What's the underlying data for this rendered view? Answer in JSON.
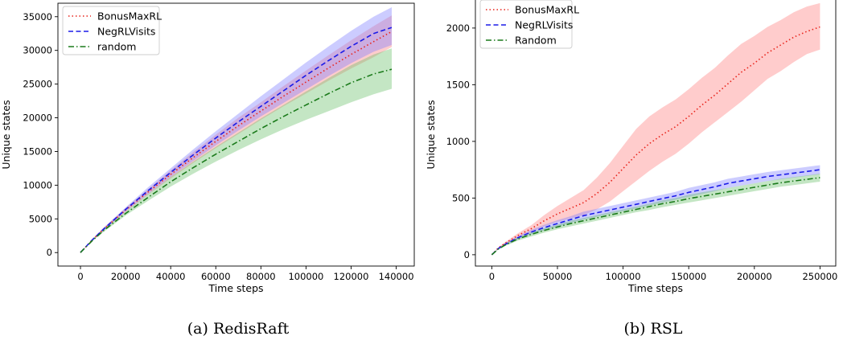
{
  "chart_data": [
    {
      "type": "line",
      "caption": "(a) RedisRaft",
      "xlabel": "Time steps",
      "ylabel": "Unique states",
      "xlim": [
        -10000,
        148000
      ],
      "ylim": [
        -2000,
        37000
      ],
      "xticks": [
        0,
        20000,
        40000,
        60000,
        80000,
        100000,
        120000,
        140000
      ],
      "yticks": [
        0,
        5000,
        10000,
        15000,
        20000,
        25000,
        30000,
        35000
      ],
      "legend_position": "top-left",
      "x": [
        0,
        5000,
        10000,
        20000,
        30000,
        40000,
        50000,
        60000,
        70000,
        80000,
        90000,
        100000,
        110000,
        120000,
        130000,
        138000
      ],
      "series": [
        {
          "name": "BonusMaxRL",
          "style": "dotted",
          "color": "#e8241b",
          "band_color": "#ff8080",
          "values": [
            0,
            1800,
            3400,
            6300,
            9000,
            11600,
            14100,
            16500,
            18800,
            21000,
            23200,
            25300,
            27400,
            29400,
            31300,
            32800
          ],
          "lower": [
            0,
            1700,
            3200,
            6000,
            8600,
            11000,
            13300,
            15500,
            17600,
            19700,
            21700,
            23600,
            25500,
            27300,
            29000,
            30500
          ],
          "upper": [
            0,
            1900,
            3600,
            6600,
            9400,
            12200,
            14900,
            17500,
            20000,
            22300,
            24700,
            27000,
            29300,
            31500,
            33600,
            35200
          ]
        },
        {
          "name": "NegRLVisits",
          "style": "dashed",
          "color": "#1b1be8",
          "band_color": "#8080ff",
          "values": [
            0,
            1800,
            3400,
            6400,
            9200,
            11900,
            14500,
            17000,
            19400,
            21700,
            24000,
            26300,
            28500,
            30600,
            32500,
            33400
          ],
          "lower": [
            0,
            1700,
            3200,
            6100,
            8700,
            11200,
            13600,
            15900,
            18100,
            20200,
            22200,
            24200,
            26200,
            28100,
            29800,
            30800
          ],
          "upper": [
            0,
            1900,
            3600,
            6700,
            9700,
            12500,
            15300,
            18000,
            20600,
            23200,
            25700,
            28200,
            30600,
            32900,
            35000,
            36400
          ]
        },
        {
          "name": "random",
          "style": "dashdot",
          "color": "#1a7a1a",
          "band_color": "#6cc06c",
          "values": [
            0,
            1700,
            3200,
            5800,
            8200,
            10500,
            12600,
            14600,
            16500,
            18400,
            20200,
            21900,
            23600,
            25200,
            26500,
            27200
          ],
          "lower": [
            0,
            1650,
            3000,
            5500,
            7700,
            9800,
            11700,
            13500,
            15200,
            16800,
            18300,
            19700,
            21000,
            22300,
            23500,
            24300
          ],
          "upper": [
            0,
            1750,
            3400,
            6100,
            8700,
            11200,
            13500,
            15700,
            17800,
            19900,
            21900,
            23900,
            25900,
            27800,
            29400,
            30300
          ]
        }
      ]
    },
    {
      "type": "line",
      "caption": "(b) RSL",
      "xlabel": "Time steps",
      "ylabel": "Unique states",
      "xlim": [
        -12500,
        262000
      ],
      "ylim": [
        -100,
        2290
      ],
      "xticks": [
        0,
        50000,
        100000,
        150000,
        200000,
        250000
      ],
      "yticks": [
        0,
        500,
        1000,
        1500,
        2000
      ],
      "legend_position": "top-left",
      "x": [
        0,
        5000,
        10000,
        20000,
        30000,
        40000,
        50000,
        60000,
        70000,
        80000,
        90000,
        100000,
        110000,
        120000,
        130000,
        140000,
        150000,
        160000,
        170000,
        180000,
        190000,
        200000,
        210000,
        220000,
        230000,
        240000,
        250000
      ],
      "series": [
        {
          "name": "BonusMaxRL",
          "style": "dotted",
          "color": "#e8241b",
          "band_color": "#ff8080",
          "values": [
            0,
            60,
            100,
            170,
            230,
            300,
            360,
            410,
            460,
            540,
            640,
            760,
            880,
            980,
            1060,
            1130,
            1220,
            1320,
            1410,
            1510,
            1610,
            1690,
            1780,
            1850,
            1920,
            1970,
            2010
          ],
          "lower": [
            0,
            55,
            90,
            150,
            200,
            250,
            290,
            320,
            350,
            400,
            470,
            560,
            650,
            740,
            820,
            890,
            980,
            1080,
            1170,
            1260,
            1350,
            1450,
            1550,
            1620,
            1700,
            1770,
            1810
          ],
          "upper": [
            0,
            65,
            110,
            190,
            260,
            350,
            430,
            500,
            570,
            680,
            810,
            960,
            1110,
            1220,
            1300,
            1370,
            1460,
            1560,
            1650,
            1760,
            1860,
            1930,
            2010,
            2070,
            2140,
            2190,
            2220
          ]
        },
        {
          "name": "NegRLVisits",
          "style": "dashed",
          "color": "#1b1be8",
          "band_color": "#8080ff",
          "values": [
            0,
            55,
            90,
            150,
            200,
            240,
            275,
            310,
            345,
            370,
            395,
            420,
            445,
            470,
            495,
            520,
            550,
            575,
            600,
            630,
            650,
            670,
            690,
            705,
            720,
            735,
            750
          ],
          "lower": [
            0,
            50,
            80,
            135,
            180,
            215,
            245,
            280,
            310,
            335,
            360,
            385,
            410,
            435,
            460,
            485,
            510,
            535,
            560,
            590,
            610,
            630,
            650,
            665,
            680,
            695,
            710
          ],
          "upper": [
            0,
            60,
            100,
            165,
            220,
            265,
            305,
            340,
            380,
            405,
            430,
            455,
            480,
            505,
            530,
            555,
            590,
            615,
            640,
            670,
            690,
            710,
            730,
            745,
            760,
            775,
            790
          ]
        },
        {
          "name": "Random",
          "style": "dashdot",
          "color": "#1a7a1a",
          "band_color": "#6cc06c",
          "values": [
            0,
            50,
            85,
            140,
            180,
            215,
            245,
            275,
            300,
            325,
            350,
            375,
            400,
            425,
            450,
            470,
            495,
            515,
            535,
            555,
            575,
            595,
            615,
            635,
            650,
            665,
            680
          ],
          "lower": [
            0,
            45,
            75,
            125,
            160,
            195,
            225,
            250,
            275,
            300,
            325,
            350,
            375,
            395,
            420,
            440,
            460,
            480,
            500,
            520,
            540,
            560,
            580,
            600,
            615,
            630,
            645
          ],
          "upper": [
            0,
            55,
            95,
            155,
            200,
            235,
            265,
            300,
            325,
            350,
            375,
            400,
            425,
            450,
            480,
            500,
            530,
            550,
            570,
            590,
            610,
            630,
            650,
            670,
            685,
            700,
            715
          ]
        }
      ]
    }
  ]
}
